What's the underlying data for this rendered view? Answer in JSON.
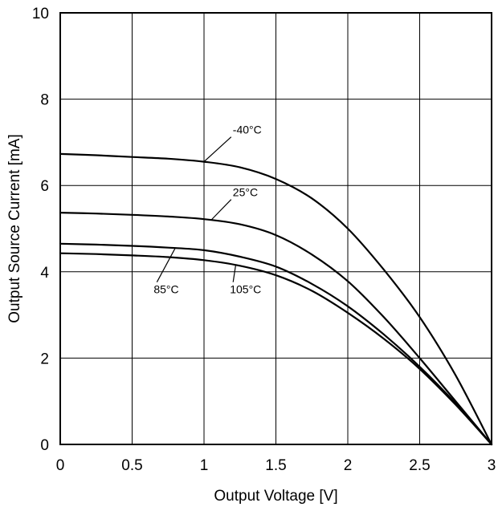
{
  "chart_data": {
    "type": "line",
    "xlabel": "Output Voltage [V]",
    "ylabel": "Output Source Current [mA]",
    "xlim": [
      0,
      3
    ],
    "ylim": [
      0,
      10
    ],
    "x_ticks": [
      "0",
      "0.5",
      "1",
      "1.5",
      "2",
      "2.5",
      "3"
    ],
    "y_ticks": [
      "0",
      "2",
      "4",
      "6",
      "8",
      "10"
    ],
    "grid": true,
    "legend": "none",
    "series": [
      {
        "name": "-40°C",
        "x": [
          0,
          0.25,
          0.5,
          0.75,
          1.0,
          1.25,
          1.5,
          1.75,
          2.0,
          2.25,
          2.5,
          2.75,
          3.0
        ],
        "y": [
          6.73,
          6.7,
          6.66,
          6.62,
          6.55,
          6.42,
          6.15,
          5.7,
          5.0,
          4.05,
          2.95,
          1.6,
          0.0
        ]
      },
      {
        "name": "25°C",
        "x": [
          0,
          0.25,
          0.5,
          0.75,
          1.0,
          1.25,
          1.5,
          1.75,
          2.0,
          2.25,
          2.5,
          2.75,
          3.0
        ],
        "y": [
          5.37,
          5.35,
          5.32,
          5.28,
          5.22,
          5.1,
          4.85,
          4.4,
          3.78,
          2.95,
          2.0,
          1.0,
          0.0
        ]
      },
      {
        "name": "85°C",
        "x": [
          0,
          0.25,
          0.5,
          0.75,
          1.0,
          1.25,
          1.5,
          1.75,
          2.0,
          2.25,
          2.5,
          2.75,
          3.0
        ],
        "y": [
          4.65,
          4.63,
          4.6,
          4.56,
          4.5,
          4.35,
          4.12,
          3.72,
          3.2,
          2.55,
          1.8,
          0.95,
          0.0
        ]
      },
      {
        "name": "105°C",
        "x": [
          0,
          0.25,
          0.5,
          0.75,
          1.0,
          1.25,
          1.5,
          1.75,
          2.0,
          2.25,
          2.5,
          2.75,
          3.0
        ],
        "y": [
          4.43,
          4.41,
          4.38,
          4.34,
          4.27,
          4.14,
          3.92,
          3.56,
          3.05,
          2.45,
          1.75,
          0.92,
          0.0
        ]
      }
    ],
    "annotations": [
      {
        "text": "-40°C",
        "x": 1.2,
        "y": 7.2,
        "target_x": 1.0,
        "target_y": 6.55
      },
      {
        "text": "25°C",
        "x": 1.2,
        "y": 5.75,
        "target_x": 1.05,
        "target_y": 5.2
      },
      {
        "text": "85°C",
        "x": 0.65,
        "y": 3.5,
        "target_x": 0.8,
        "target_y": 4.55
      },
      {
        "text": "105°C",
        "x": 1.18,
        "y": 3.5,
        "target_x": 1.22,
        "target_y": 4.15
      }
    ]
  }
}
